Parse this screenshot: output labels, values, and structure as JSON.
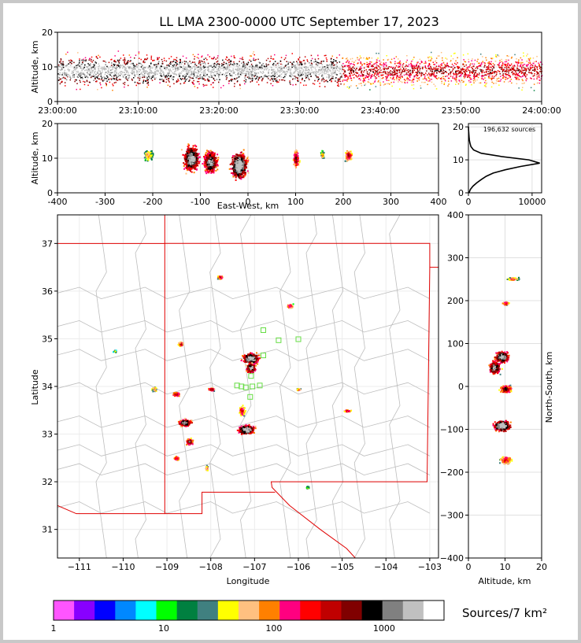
{
  "title": "LL LMA 2300-0000 UTC September 17, 2023",
  "chart_data": [
    {
      "id": "time_height",
      "type": "scatter",
      "xlabel": "",
      "ylabel": "Altitude, km",
      "x_ticks": [
        "23:00:00",
        "23:10:00",
        "23:20:00",
        "23:30:00",
        "23:40:00",
        "23:50:00",
        "24:00:00"
      ],
      "xlim": [
        "23:00:00",
        "24:00:00"
      ],
      "ylim": [
        0,
        20
      ],
      "y_ticks": [
        0,
        10,
        20
      ],
      "grid": true,
      "description_values": {
        "peak_source_altitude_km": 9
      }
    },
    {
      "id": "east_west_altitude",
      "type": "scatter",
      "xlabel": "East-West, km",
      "ylabel": "Altitude, km",
      "xlim": [
        -400,
        400
      ],
      "x_ticks": [
        -400,
        -300,
        -200,
        -100,
        0,
        100,
        200,
        300,
        400
      ],
      "ylim": [
        0,
        20
      ],
      "y_ticks": [
        0,
        10,
        20
      ],
      "grid": true,
      "clusters": [
        {
          "x": -210,
          "alt": 11
        },
        {
          "x": -120,
          "alt": 10
        },
        {
          "x": -80,
          "alt": 9
        },
        {
          "x": -20,
          "alt": 8
        },
        {
          "x": 100,
          "alt": 10
        },
        {
          "x": 155,
          "alt": 11
        },
        {
          "x": 210,
          "alt": 11
        }
      ]
    },
    {
      "id": "altitude_histogram",
      "type": "line",
      "annotation": "196,632 sources",
      "xlim": [
        0,
        11500
      ],
      "x_ticks": [
        0,
        10000
      ],
      "ylim": [
        0,
        21
      ],
      "y_ticks": [
        0,
        10,
        20
      ],
      "series": [
        {
          "altitude": [
            0,
            1,
            2,
            3,
            4,
            5,
            6,
            7,
            8,
            9,
            10,
            11,
            12,
            13,
            14,
            15,
            16,
            17,
            18,
            19,
            20
          ],
          "counts": [
            100,
            300,
            700,
            1300,
            2000,
            2800,
            3900,
            5800,
            8200,
            11200,
            9500,
            5200,
            2000,
            800,
            400,
            250,
            150,
            100,
            60,
            30,
            10
          ]
        }
      ]
    },
    {
      "id": "plan_view",
      "type": "scatter",
      "xlabel": "Longitude",
      "ylabel": "Latitude",
      "xlim": [
        -111.5,
        -102.8
      ],
      "x_ticks": [
        -111,
        -110,
        -109,
        -108,
        -107,
        -106,
        -105,
        -104,
        -103
      ],
      "ylim": [
        30.4,
        37.6
      ],
      "y_ticks": [
        31,
        32,
        33,
        34,
        35,
        36,
        37
      ],
      "grid": true,
      "clusters": [
        {
          "lon": -107.8,
          "lat": 36.3
        },
        {
          "lon": -106.2,
          "lat": 35.7
        },
        {
          "lon": -108.7,
          "lat": 34.9
        },
        {
          "lon": -107.1,
          "lat": 34.6
        },
        {
          "lon": -107.1,
          "lat": 34.4
        },
        {
          "lon": -109.3,
          "lat": 33.95
        },
        {
          "lon": -108.8,
          "lat": 33.85
        },
        {
          "lon": -108.0,
          "lat": 33.95
        },
        {
          "lon": -106.0,
          "lat": 33.95
        },
        {
          "lon": -104.9,
          "lat": 33.5
        },
        {
          "lon": -108.6,
          "lat": 33.25
        },
        {
          "lon": -107.2,
          "lat": 33.1
        },
        {
          "lon": -108.5,
          "lat": 32.85
        },
        {
          "lon": -108.8,
          "lat": 32.5
        },
        {
          "lon": -108.1,
          "lat": 32.3
        },
        {
          "lon": -107.3,
          "lat": 33.5
        },
        {
          "lon": -105.8,
          "lat": 31.9
        },
        {
          "lon": -110.2,
          "lat": 34.75
        }
      ],
      "stations": [
        {
          "lon": -106.8,
          "lat": 35.18
        },
        {
          "lon": -106.45,
          "lat": 34.97
        },
        {
          "lon": -106.0,
          "lat": 34.99
        },
        {
          "lon": -106.8,
          "lat": 34.65
        },
        {
          "lon": -107.4,
          "lat": 34.02
        },
        {
          "lon": -107.3,
          "lat": 34.0
        },
        {
          "lon": -107.2,
          "lat": 33.98
        },
        {
          "lon": -107.05,
          "lat": 34.0
        },
        {
          "lon": -106.88,
          "lat": 34.02
        },
        {
          "lon": -107.1,
          "lat": 33.78
        },
        {
          "lon": -107.08,
          "lat": 34.22
        }
      ]
    },
    {
      "id": "altitude_north_south",
      "type": "scatter",
      "xlabel": "Altitude, km",
      "ylabel": "North-South, km",
      "xlim": [
        0,
        20
      ],
      "x_ticks": [
        0,
        10,
        20
      ],
      "ylim": [
        -400,
        400
      ],
      "y_ticks": [
        -400,
        -300,
        -200,
        -100,
        0,
        100,
        200,
        300,
        400
      ],
      "grid": true,
      "clusters": [
        {
          "alt": 12,
          "y": 252
        },
        {
          "alt": 10,
          "y": 195
        },
        {
          "alt": 9,
          "y": 70
        },
        {
          "alt": 7,
          "y": 45
        },
        {
          "alt": 10,
          "y": -5
        },
        {
          "alt": 9,
          "y": -90
        },
        {
          "alt": 10,
          "y": -170
        }
      ]
    }
  ],
  "colorbar": {
    "label": "Sources/7 km²",
    "tick_labels": [
      "1",
      "10",
      "100",
      "1000"
    ],
    "colors": [
      "#ff55ff",
      "#8800ff",
      "#0000ff",
      "#0088ff",
      "#00ffff",
      "#00ff00",
      "#008040",
      "#408080",
      "#ffff00",
      "#ffc080",
      "#ff8000",
      "#ff0080",
      "#ff0000",
      "#c00000",
      "#800000",
      "#000000",
      "#808080",
      "#c0c0c0",
      "#ffffff"
    ]
  }
}
